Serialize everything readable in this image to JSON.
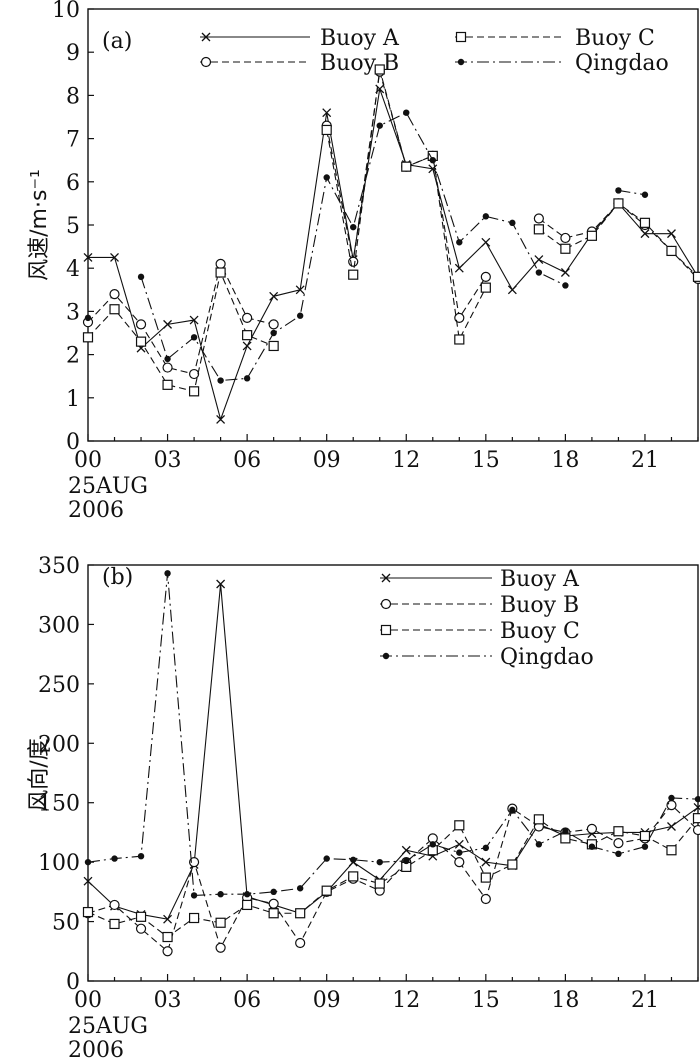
{
  "chart_data": [
    {
      "type": "line",
      "panel_label": "(a)",
      "ylabel": "风速/m·s⁻¹",
      "xlabel": "",
      "x_ticks": [
        "00",
        "03",
        "06",
        "09",
        "12",
        "15",
        "18",
        "21"
      ],
      "x_date_label": [
        "25AUG",
        "2006"
      ],
      "xlim": [
        0,
        23
      ],
      "ylim": [
        0,
        10
      ],
      "y_ticks": [
        0,
        1,
        2,
        3,
        4,
        5,
        6,
        7,
        8,
        9,
        10
      ],
      "legend_layout": "two-column",
      "series": [
        {
          "name": "Buoy  A",
          "marker": "x",
          "dash": "solid",
          "x": [
            0,
            1,
            2,
            3,
            4,
            5,
            6,
            7,
            8,
            9,
            10,
            11,
            12,
            13,
            14,
            15,
            16,
            17,
            18,
            19,
            20,
            21,
            22,
            23
          ],
          "values": [
            4.25,
            4.25,
            2.15,
            2.7,
            2.8,
            0.5,
            2.2,
            3.35,
            3.5,
            7.6,
            4.2,
            8.15,
            6.4,
            6.3,
            4.0,
            4.6,
            3.5,
            4.2,
            3.9,
            4.8,
            5.5,
            4.8,
            4.8,
            3.8
          ]
        },
        {
          "name": "Buoy  B",
          "marker": "circle",
          "dash": "dashed",
          "x": [
            0,
            1,
            2,
            3,
            4,
            5,
            6,
            7,
            8,
            9,
            10,
            11,
            12,
            13,
            14,
            15,
            16,
            17,
            18,
            19,
            20,
            21,
            22,
            23
          ],
          "values": [
            2.75,
            3.4,
            2.7,
            1.7,
            1.55,
            4.1,
            2.85,
            2.7,
            null,
            7.3,
            4.15,
            8.55,
            6.35,
            6.6,
            2.85,
            3.8,
            null,
            5.15,
            4.7,
            4.85,
            5.5,
            5.0,
            4.4,
            3.75
          ]
        },
        {
          "name": "Buoy  C",
          "marker": "square",
          "dash": "dashed",
          "x": [
            0,
            1,
            2,
            3,
            4,
            5,
            6,
            7,
            8,
            9,
            10,
            11,
            12,
            13,
            14,
            15,
            16,
            17,
            18,
            19,
            20,
            21,
            22,
            23
          ],
          "values": [
            2.4,
            3.05,
            2.3,
            1.3,
            1.15,
            3.9,
            2.45,
            2.2,
            null,
            7.2,
            3.85,
            8.6,
            6.35,
            6.6,
            2.35,
            3.55,
            null,
            4.9,
            4.45,
            4.75,
            5.5,
            5.05,
            4.4,
            3.8
          ]
        },
        {
          "name": "Qingdao",
          "marker": "dot",
          "dash": "dashdot",
          "x": [
            0,
            1,
            2,
            3,
            4,
            5,
            6,
            7,
            8,
            9,
            10,
            11,
            12,
            13,
            14,
            15,
            16,
            17,
            18,
            19,
            20,
            21,
            22,
            23
          ],
          "values": [
            2.85,
            null,
            3.8,
            1.9,
            2.4,
            1.4,
            1.45,
            2.5,
            2.9,
            6.1,
            4.95,
            7.3,
            7.6,
            6.5,
            4.6,
            5.2,
            5.05,
            3.9,
            3.6,
            null,
            5.8,
            5.7,
            null,
            null
          ]
        }
      ]
    },
    {
      "type": "line",
      "panel_label": "(b)",
      "ylabel": "风向/度",
      "xlabel": "",
      "x_ticks": [
        "00",
        "03",
        "06",
        "09",
        "12",
        "15",
        "18",
        "21"
      ],
      "x_date_label": [
        "25AUG",
        "2006"
      ],
      "xlim": [
        0,
        23
      ],
      "ylim": [
        0,
        350
      ],
      "y_ticks": [
        0,
        50,
        100,
        150,
        200,
        250,
        300,
        350
      ],
      "legend_layout": "one-column",
      "series": [
        {
          "name": "Buoy  A",
          "marker": "x",
          "dash": "solid",
          "x": [
            0,
            1,
            2,
            3,
            4,
            5,
            6,
            7,
            8,
            9,
            10,
            11,
            12,
            13,
            14,
            15,
            16,
            17,
            18,
            19,
            20,
            21,
            22,
            23
          ],
          "values": [
            84,
            63,
            56,
            52,
            98,
            334,
            71,
            64,
            57,
            75,
            100,
            85,
            110,
            105,
            115,
            100,
            97,
            132,
            122,
            124,
            125,
            125,
            130,
            146
          ]
        },
        {
          "name": "Buoy  B",
          "marker": "circle",
          "dash": "dashed",
          "x": [
            0,
            1,
            2,
            3,
            4,
            5,
            6,
            7,
            8,
            9,
            10,
            11,
            12,
            13,
            14,
            15,
            16,
            17,
            18,
            19,
            20,
            21,
            22,
            23
          ],
          "values": [
            57,
            64,
            44,
            25,
            100,
            28,
            70,
            65,
            32,
            75,
            86,
            76,
            100,
            120,
            100,
            69,
            145,
            130,
            125,
            128,
            116,
            120,
            148,
            127
          ]
        },
        {
          "name": "Buoy  C",
          "marker": "square",
          "dash": "dashed",
          "x": [
            0,
            1,
            2,
            3,
            4,
            5,
            6,
            7,
            8,
            9,
            10,
            11,
            12,
            13,
            14,
            15,
            16,
            17,
            18,
            19,
            20,
            21,
            22,
            23
          ],
          "values": [
            58,
            48,
            54,
            37,
            53,
            49,
            64,
            57,
            57,
            76,
            88,
            82,
            96,
            110,
            131,
            87,
            98,
            136,
            120,
            115,
            126,
            122,
            110,
            137
          ]
        },
        {
          "name": "Qingdao",
          "marker": "dot",
          "dash": "dashdot",
          "x": [
            0,
            1,
            2,
            3,
            4,
            5,
            6,
            7,
            8,
            9,
            10,
            11,
            12,
            13,
            14,
            15,
            16,
            17,
            18,
            19,
            20,
            21,
            22,
            23
          ],
          "values": [
            100,
            103,
            105,
            343,
            72,
            73,
            73,
            75,
            78,
            103,
            102,
            100,
            101,
            115,
            108,
            112,
            144,
            115,
            126,
            113,
            107,
            113,
            154,
            153
          ]
        }
      ]
    }
  ]
}
